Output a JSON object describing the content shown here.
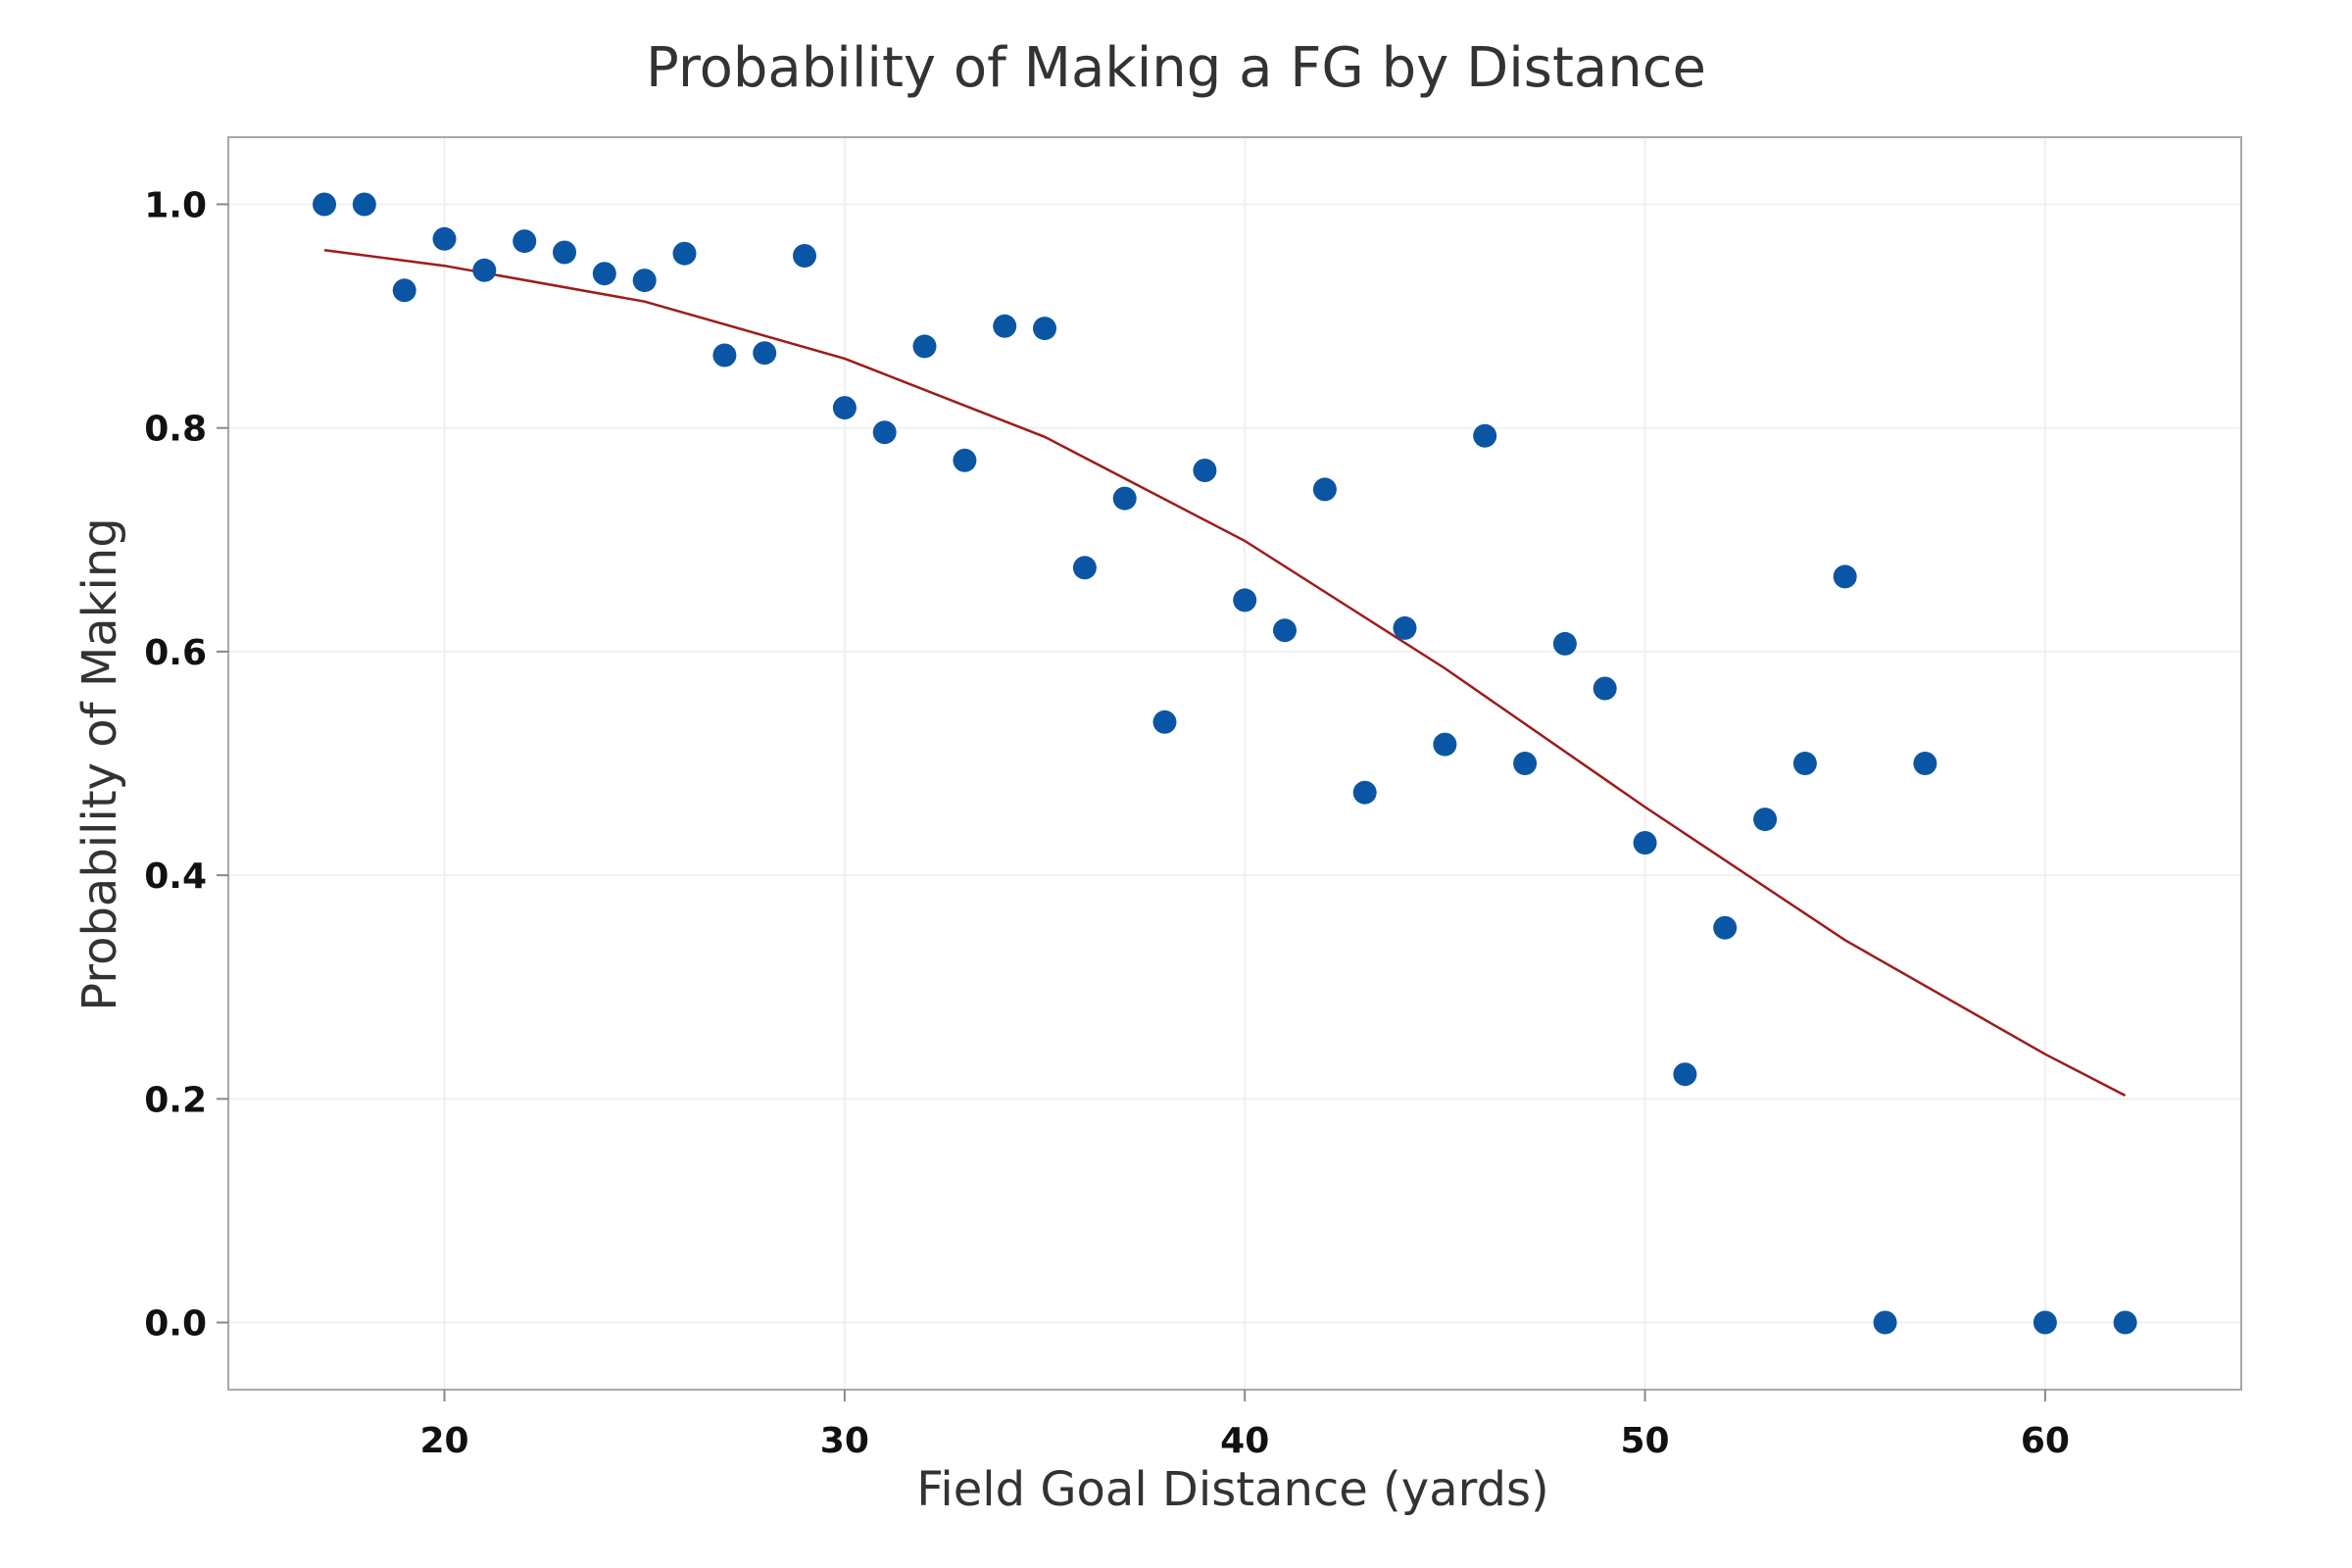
{
  "chart_data": {
    "type": "scatter",
    "title": "Probability of Making a FG by Distance",
    "xlabel": "Field Goal Distance (yards)",
    "ylabel": "Probability of Making",
    "xlim": [
      14.6,
      64.9
    ],
    "ylim": [
      -0.06,
      1.06
    ],
    "xticks": [
      20,
      30,
      40,
      50,
      60
    ],
    "yticks": [
      0.0,
      0.2,
      0.4,
      0.6,
      0.8,
      1.0
    ],
    "ytick_labels": [
      "0.0",
      "0.2",
      "0.4",
      "0.6",
      "0.8",
      "1.0"
    ],
    "xtick_labels": [
      "20",
      "30",
      "40",
      "50",
      "60"
    ],
    "grid": true,
    "legend": "none",
    "colors": {
      "points": "#0b56a4",
      "fit_line": "#9e1b1b",
      "frame": "#a8a8a8",
      "grid": "#f0f0f0"
    },
    "series": [
      {
        "kind": "points",
        "x": [
          17,
          18,
          19,
          20,
          21,
          22,
          23,
          24,
          25,
          26,
          27,
          28,
          29,
          30,
          31,
          32,
          33,
          34,
          35,
          36,
          37,
          38,
          39,
          40,
          41,
          42,
          43,
          44,
          45,
          46,
          47,
          48,
          49,
          50,
          51,
          52,
          53,
          54,
          55,
          56,
          57,
          60,
          62
        ],
        "y": [
          1.0,
          1.0,
          0.923,
          0.969,
          0.941,
          0.967,
          0.957,
          0.938,
          0.932,
          0.956,
          0.865,
          0.867,
          0.954,
          0.818,
          0.796,
          0.873,
          0.771,
          0.891,
          0.889,
          0.675,
          0.737,
          0.537,
          0.762,
          0.646,
          0.619,
          0.745,
          0.474,
          0.621,
          0.517,
          0.793,
          0.5,
          0.607,
          0.567,
          0.429,
          0.222,
          0.353,
          0.45,
          0.5,
          0.667,
          0.0,
          0.5,
          0.0,
          0.0
        ]
      },
      {
        "kind": "fit",
        "model": "logistic",
        "x": [
          17,
          20,
          25,
          30,
          35,
          40,
          45,
          50,
          55,
          60,
          62
        ],
        "y": [
          0.959,
          0.945,
          0.913,
          0.862,
          0.792,
          0.699,
          0.585,
          0.461,
          0.342,
          0.24,
          0.203
        ]
      }
    ]
  }
}
